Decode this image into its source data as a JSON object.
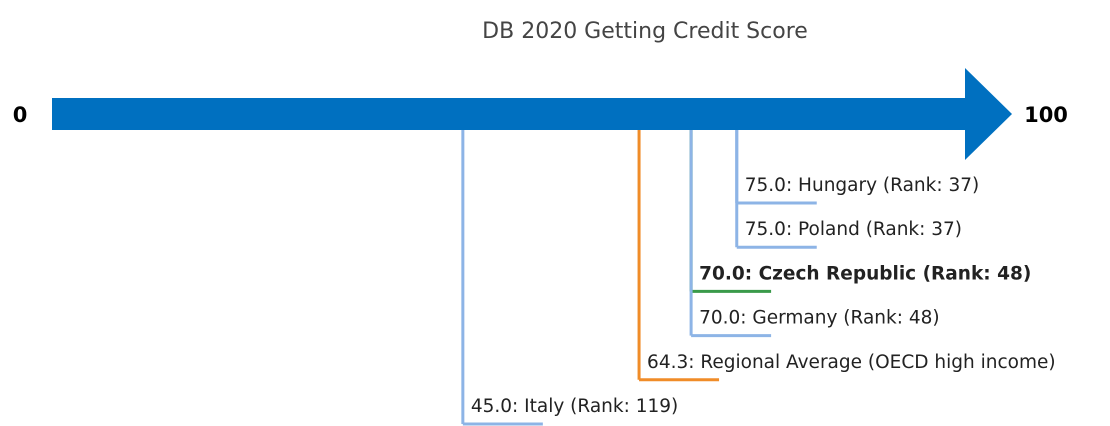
{
  "chart_data": {
    "type": "scale",
    "title": "DB 2020 Getting Credit Score",
    "xlim": [
      0,
      100
    ],
    "xticks": [
      0,
      100
    ],
    "axis_color": "#0070c0",
    "values": [
      75,
      75,
      70,
      70,
      64.3,
      45
    ],
    "value_labels": [
      "75.0: Hungary (Rank: 37)",
      "75.0: Poland (Rank: 37)",
      "70.0: Czech Republic (Rank: 48)",
      "70.0: Germany (Rank: 48)",
      "64.3: Regional Average (OECD high income)",
      "45.0: Italy (Rank: 119)"
    ],
    "colors": [
      "#8db4e6",
      "#8db4e6",
      "#3a9a4a",
      "#8db4e6",
      "#f08c28",
      "#8db4e6"
    ],
    "bold": [
      false,
      false,
      true,
      false,
      false,
      false
    ]
  }
}
